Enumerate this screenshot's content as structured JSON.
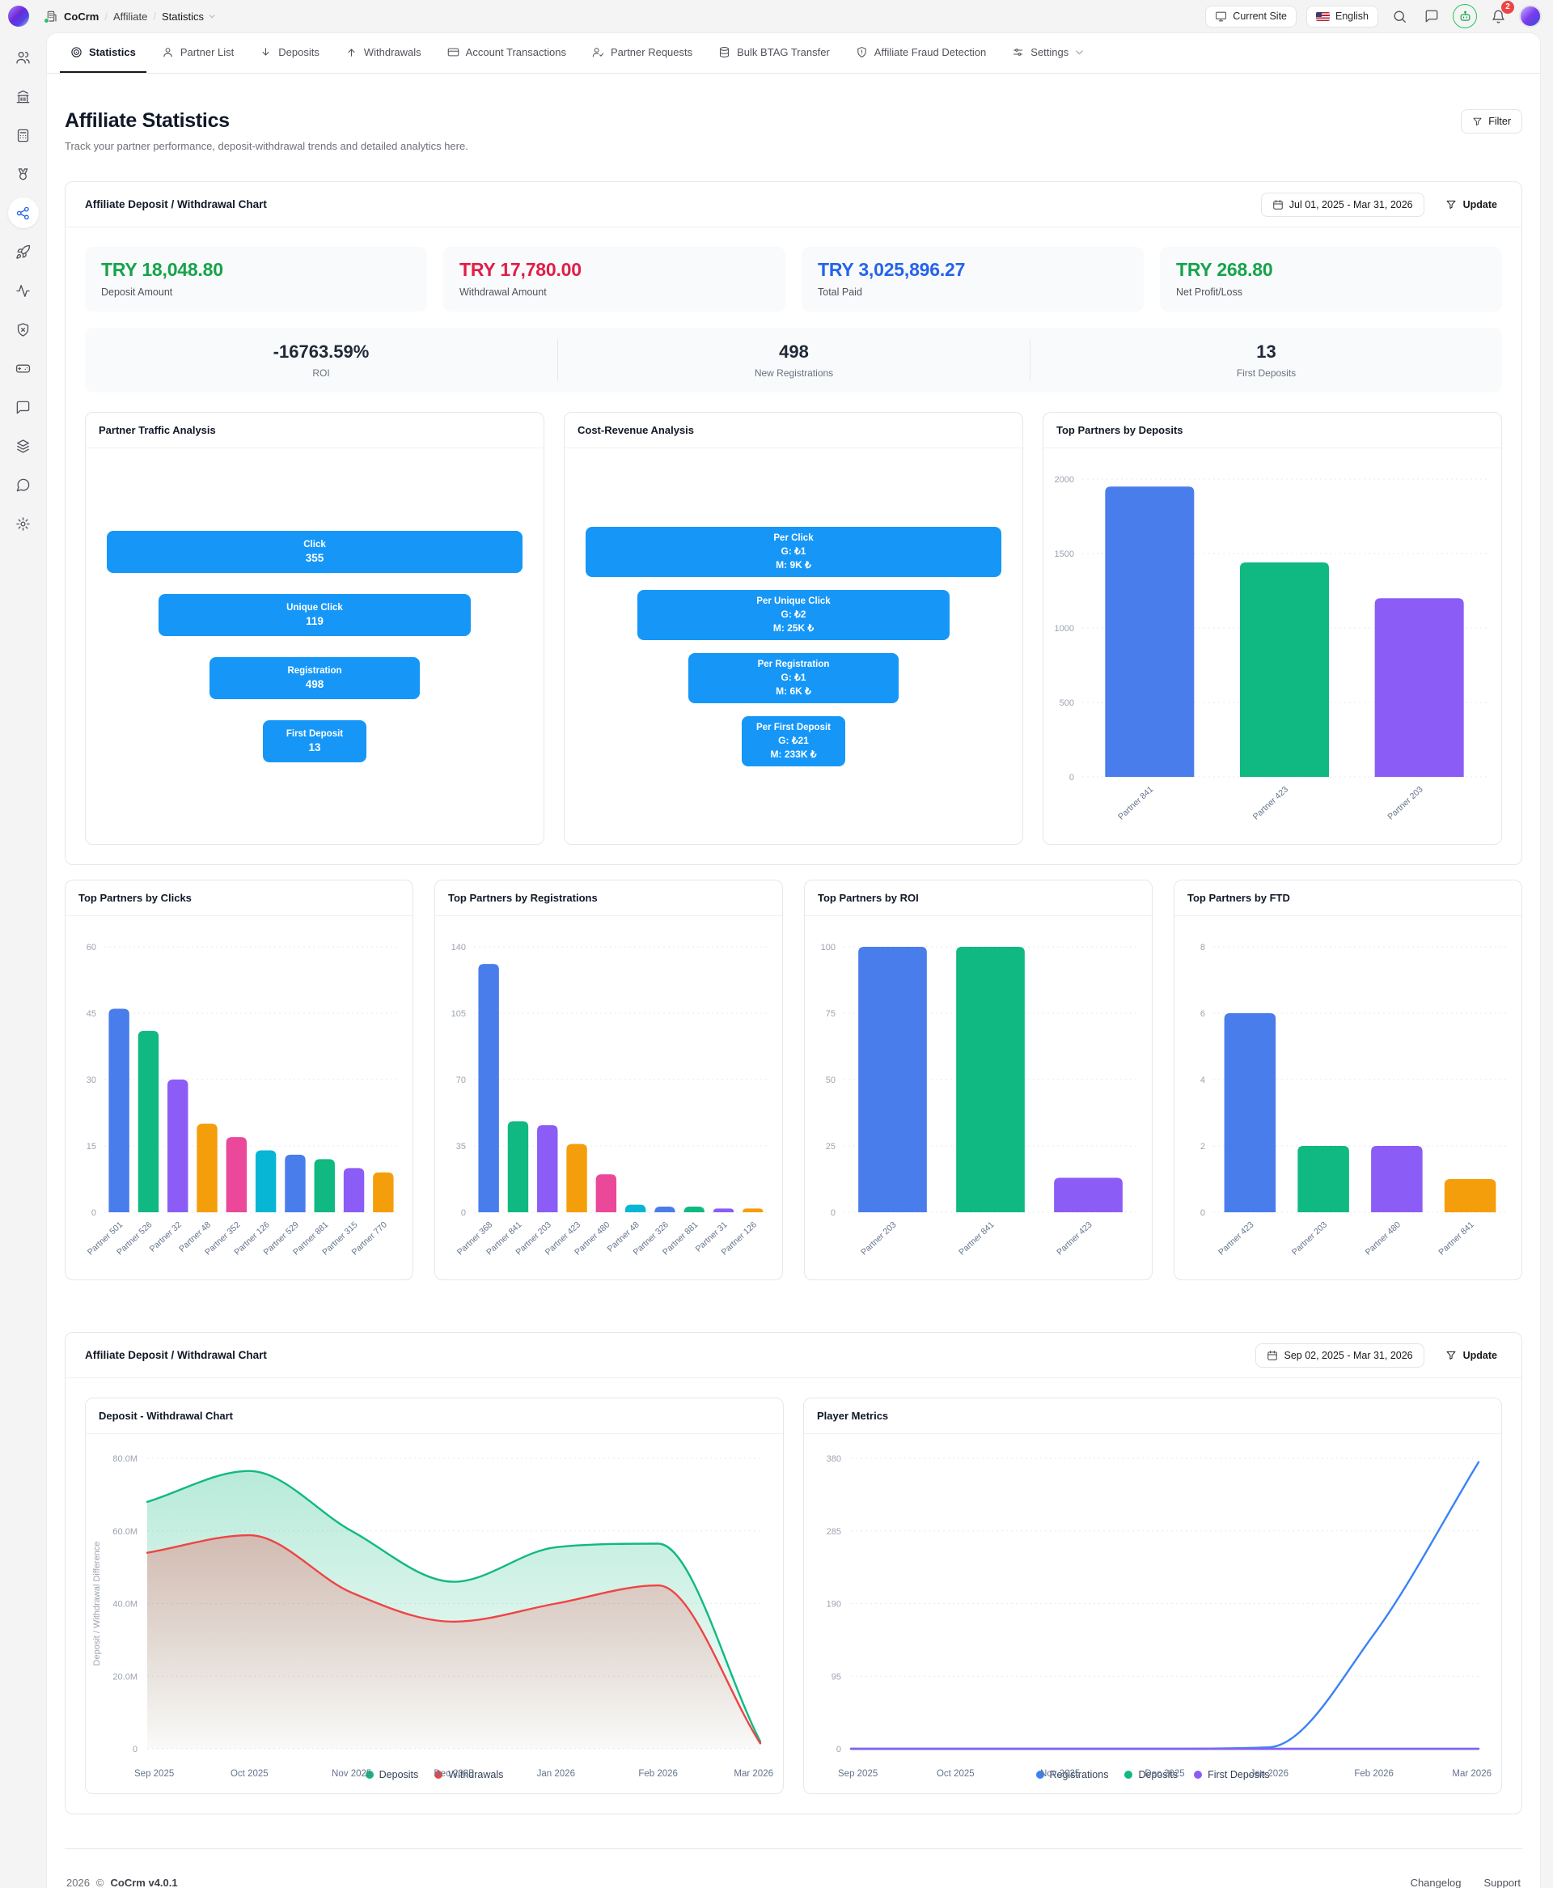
{
  "topbar": {
    "breadcrumb": {
      "app": "CoCrm",
      "sep": "/",
      "section": "Affiliate",
      "page": "Statistics"
    },
    "current_site_label": "Current Site",
    "language_label": "English",
    "notification_count": "2"
  },
  "sidebar": {
    "items": [
      {
        "icon": "users",
        "active": false
      },
      {
        "icon": "bank",
        "active": false
      },
      {
        "icon": "calculator",
        "active": false
      },
      {
        "icon": "medal",
        "active": false
      },
      {
        "icon": "share-network",
        "active": true
      },
      {
        "icon": "rocket",
        "active": false
      },
      {
        "icon": "activity",
        "active": false
      },
      {
        "icon": "shield-x",
        "active": false
      },
      {
        "icon": "gamepad",
        "active": false
      },
      {
        "icon": "chat-square",
        "active": false
      },
      {
        "icon": "layers",
        "active": false
      },
      {
        "icon": "chat-bubble",
        "active": false
      },
      {
        "icon": "settings-gear",
        "active": false
      }
    ]
  },
  "tabs": [
    {
      "label": "Statistics",
      "icon": "target",
      "active": true
    },
    {
      "label": "Partner List",
      "icon": "user",
      "active": false
    },
    {
      "label": "Deposits",
      "icon": "arrow-down",
      "active": false
    },
    {
      "label": "Withdrawals",
      "icon": "arrow-up",
      "active": false
    },
    {
      "label": "Account Transactions",
      "icon": "credit-card",
      "active": false
    },
    {
      "label": "Partner Requests",
      "icon": "user-check",
      "active": false
    },
    {
      "label": "Bulk BTAG Transfer",
      "icon": "database",
      "active": false
    },
    {
      "label": "Affiliate Fraud Detection",
      "icon": "shield-alert",
      "active": false
    },
    {
      "label": "Settings",
      "icon": "sliders",
      "active": false,
      "chevron": true
    }
  ],
  "page": {
    "title": "Affiliate Statistics",
    "subtitle": "Track your partner performance, deposit-withdrawal trends and detailed analytics here.",
    "filter_label": "Filter"
  },
  "section1": {
    "title": "Affiliate Deposit / Withdrawal Chart",
    "date_range": "Jul 01, 2025 - Mar 31, 2026",
    "update_label": "Update",
    "stats": [
      {
        "value": "TRY 18,048.80",
        "label": "Deposit Amount",
        "color": "#16a34a"
      },
      {
        "value": "TRY 17,780.00",
        "label": "Withdrawal Amount",
        "color": "#e11d48"
      },
      {
        "value": "TRY 3,025,896.27",
        "label": "Total Paid",
        "color": "#2563eb"
      },
      {
        "value": "TRY 268.80",
        "label": "Net Profit/Loss",
        "color": "#16a34a"
      }
    ],
    "summary": [
      {
        "value": "-16763.59%",
        "label": "ROI"
      },
      {
        "value": "498",
        "label": "New Registrations"
      },
      {
        "value": "13",
        "label": "First Deposits"
      }
    ],
    "funnels": {
      "traffic": {
        "title": "Partner Traffic Analysis",
        "steps": [
          {
            "lines": [
              "Click",
              "355"
            ]
          },
          {
            "lines": [
              "Unique Click",
              "119"
            ]
          },
          {
            "lines": [
              "Registration",
              "498"
            ]
          },
          {
            "lines": [
              "First Deposit",
              "13"
            ]
          }
        ]
      },
      "cost": {
        "title": "Cost-Revenue Analysis",
        "steps": [
          {
            "lines": [
              "Per Click",
              "G: ₺1",
              "M: 9K ₺"
            ]
          },
          {
            "lines": [
              "Per Unique Click",
              "G: ₺2",
              "M: 25K ₺"
            ]
          },
          {
            "lines": [
              "Per Registration",
              "G: ₺1",
              "M: 6K ₺"
            ]
          },
          {
            "lines": [
              "Per First Deposit",
              "G: ₺21",
              "M: 233K ₺"
            ]
          }
        ]
      }
    }
  },
  "section2": {
    "title": "Affiliate Deposit / Withdrawal Chart",
    "date_range": "Sep 02, 2025 - Mar 31, 2026",
    "update_label": "Update"
  },
  "footer": {
    "year": "2026",
    "copyright": "©",
    "version": "CoCrm v4.0.1",
    "links": [
      "Changelog",
      "Support"
    ]
  },
  "chart_data": [
    {
      "id": "top-deposits",
      "type": "bar",
      "title": "Top Partners by Deposits",
      "categories": [
        "Partner 841",
        "Partner 423",
        "Partner 203"
      ],
      "values": [
        1950,
        1440,
        1200
      ],
      "colors": [
        "#4a7dec",
        "#10b981",
        "#8b5cf6",
        "#f59e0b",
        "#ec4899",
        "#06b6d4"
      ],
      "ylim": [
        0,
        2000
      ],
      "yticks": [
        0,
        500,
        1000,
        1500,
        2000
      ],
      "grid": true
    },
    {
      "id": "top-clicks",
      "type": "bar",
      "title": "Top Partners by Clicks",
      "categories": [
        "Partner 501",
        "Partner 526",
        "Partner 32",
        "Partner 48",
        "Partner 352",
        "Partner 126",
        "Partner 529",
        "Partner 881",
        "Partner 315",
        "Partner 770"
      ],
      "values": [
        46,
        41,
        30,
        20,
        17,
        14,
        13,
        12,
        10,
        9
      ],
      "colors": [
        "#4a7dec",
        "#10b981",
        "#8b5cf6",
        "#f59e0b",
        "#ec4899",
        "#06b6d4"
      ],
      "ylim": [
        0,
        60
      ],
      "yticks": [
        0,
        15,
        30,
        45,
        60
      ],
      "grid": true
    },
    {
      "id": "top-registrations",
      "type": "bar",
      "title": "Top Partners by Registrations",
      "categories": [
        "Partner 368",
        "Partner 841",
        "Partner 203",
        "Partner 423",
        "Partner 480",
        "Partner 48",
        "Partner 326",
        "Partner 881",
        "Partner 31",
        "Partner 126"
      ],
      "values": [
        131,
        48,
        46,
        36,
        20,
        4,
        3,
        3,
        2,
        2
      ],
      "colors": [
        "#4a7dec",
        "#10b981",
        "#8b5cf6",
        "#f59e0b",
        "#ec4899",
        "#06b6d4"
      ],
      "ylim": [
        0,
        140
      ],
      "yticks": [
        0,
        35,
        70,
        105,
        140
      ],
      "grid": true
    },
    {
      "id": "top-roi",
      "type": "bar",
      "title": "Top Partners by ROI",
      "categories": [
        "Partner 203",
        "Partner 841",
        "Partner 423"
      ],
      "values": [
        100,
        100,
        13
      ],
      "colors": [
        "#4a7dec",
        "#10b981",
        "#8b5cf6",
        "#f59e0b",
        "#ec4899",
        "#06b6d4"
      ],
      "ylim": [
        0,
        100
      ],
      "yticks": [
        0,
        25,
        50,
        75,
        100
      ],
      "grid": true
    },
    {
      "id": "top-ftd",
      "type": "bar",
      "title": "Top Partners by FTD",
      "categories": [
        "Partner 423",
        "Partner 203",
        "Partner 480",
        "Partner 841"
      ],
      "values": [
        6,
        2,
        2,
        1
      ],
      "colors": [
        "#4a7dec",
        "#10b981",
        "#8b5cf6",
        "#f59e0b",
        "#ec4899",
        "#06b6d4"
      ],
      "ylim": [
        0,
        8
      ],
      "yticks": [
        0,
        2,
        4,
        6,
        8
      ],
      "grid": true
    },
    {
      "id": "dep-wd",
      "type": "area",
      "title": "Deposit - Withdrawal Chart",
      "x": [
        "Sep 2025",
        "Oct 2025",
        "Nov 2025",
        "Dec 2025",
        "Jan 2026",
        "Feb 2026",
        "Mar 2026"
      ],
      "ylabel": "Deposit / Withdrawal Difference",
      "ylim": [
        0,
        80
      ],
      "yticks": [
        0,
        20,
        40,
        60,
        80
      ],
      "ytick_labels": [
        "0",
        "20.0M",
        "40.0M",
        "60.0M",
        "80.0M"
      ],
      "grid": true,
      "legend_position": "bottom",
      "series": [
        {
          "name": "Deposits",
          "color": "#10b981",
          "values": [
            68,
            76.5,
            60,
            46,
            55.5,
            56.5,
            2
          ]
        },
        {
          "name": "Withdrawals",
          "color": "#ef4444",
          "values": [
            54,
            58.8,
            43,
            35,
            40,
            45,
            1.5
          ]
        }
      ]
    },
    {
      "id": "player-metrics",
      "type": "line",
      "title": "Player Metrics",
      "x": [
        "Sep 2025",
        "Oct 2025",
        "Nov 2025",
        "Dec 2025",
        "Jan 2026",
        "Feb 2026",
        "Mar 2026"
      ],
      "ylim": [
        0,
        380
      ],
      "yticks": [
        0,
        95,
        190,
        285,
        380
      ],
      "ytick_labels": [
        "0",
        "95",
        "190",
        "285",
        "380"
      ],
      "grid": true,
      "legend_position": "bottom",
      "series": [
        {
          "name": "Registrations",
          "color": "#3b82f6",
          "values": [
            0,
            0,
            0,
            0,
            2,
            150,
            375
          ]
        },
        {
          "name": "Deposits",
          "color": "#10b981",
          "values": [
            0,
            0,
            0,
            0,
            0,
            0,
            0
          ]
        },
        {
          "name": "First Deposits",
          "color": "#8b5cf6",
          "values": [
            0,
            0,
            0,
            0,
            0,
            0,
            0
          ]
        }
      ]
    }
  ]
}
